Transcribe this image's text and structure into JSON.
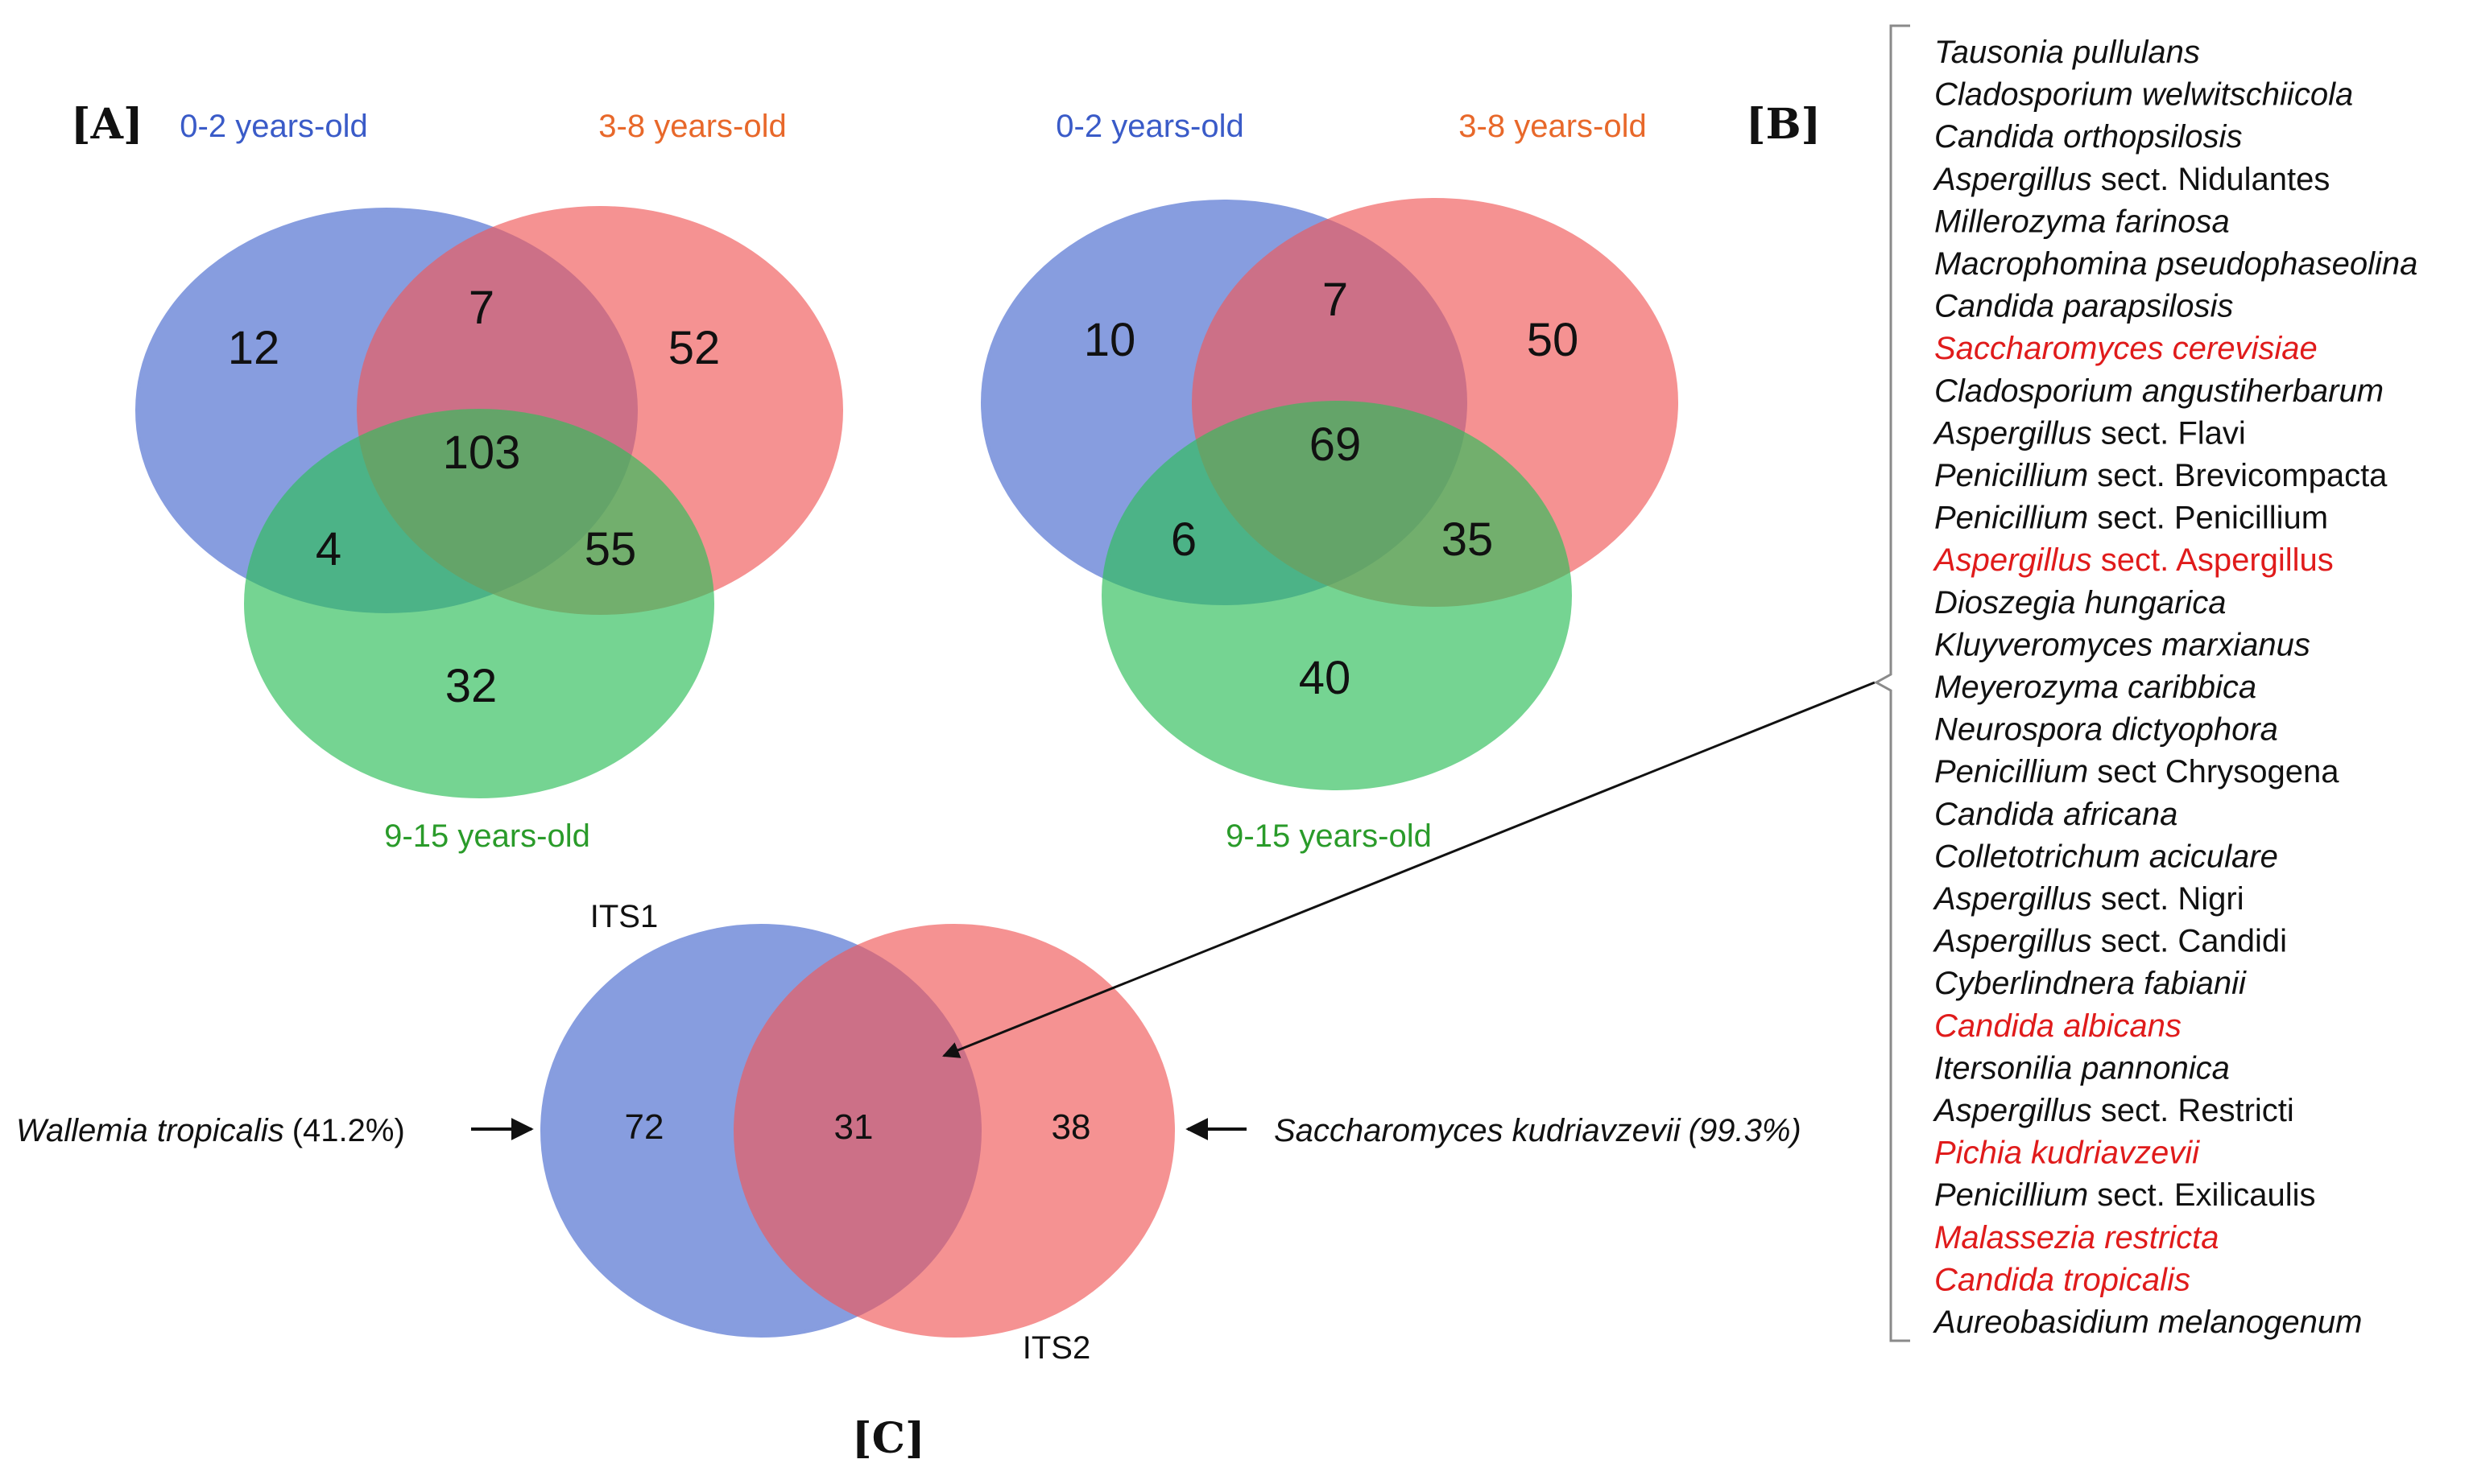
{
  "panel_labels": {
    "a": "[A]",
    "b": "[B]",
    "c": "[C]"
  },
  "colors": {
    "blue": "#4a6bd0",
    "red": "#f05a5a",
    "green": "#2fbf5a",
    "label_blue": "#3a5bc8",
    "label_orange": "#e8682a",
    "label_green": "#2a9b2a",
    "highlight_red": "#e01b1b",
    "text": "#111111"
  },
  "panel_a": {
    "sets": {
      "a": "0-2 years-old",
      "b": "3-8 years-old",
      "c": "9-15 years-old"
    },
    "regions": {
      "only_a": "12",
      "only_b": "52",
      "only_c": "32",
      "a_b": "7",
      "a_c": "4",
      "b_c": "55",
      "a_b_c": "103"
    }
  },
  "panel_b": {
    "sets": {
      "a": "0-2 years-old",
      "b": "3-8 years-old",
      "c": "9-15 years-old"
    },
    "regions": {
      "only_a": "10",
      "only_b": "50",
      "only_c": "40",
      "a_b": "7",
      "a_c": "6",
      "b_c": "35",
      "a_b_c": "69"
    }
  },
  "panel_c": {
    "sets": {
      "left": "ITS1",
      "right": "ITS2"
    },
    "regions": {
      "only_left": "72",
      "both": "31",
      "only_right": "38"
    },
    "left_annotation": {
      "species": "Wallemia tropicalis",
      "value": "(41.2%)"
    },
    "right_annotation": {
      "species": "Saccharomyces kudriavzevii",
      "value": "(99.3%)"
    }
  },
  "shared_species": [
    {
      "genus": "Tausonia pullulans",
      "rest": "",
      "highlight": false
    },
    {
      "genus": "Cladosporium welwitschiicola",
      "rest": "",
      "highlight": false
    },
    {
      "genus": "Candida orthopsilosis",
      "rest": "",
      "highlight": false
    },
    {
      "genus": "Aspergillus",
      "rest": " sect. Nidulantes",
      "highlight": false
    },
    {
      "genus": "Millerozyma farinosa",
      "rest": "",
      "highlight": false
    },
    {
      "genus": "Macrophomina pseudophaseolina",
      "rest": "",
      "highlight": false
    },
    {
      "genus": "Candida parapsilosis",
      "rest": "",
      "highlight": false
    },
    {
      "genus": "Saccharomyces cerevisiae",
      "rest": "",
      "highlight": true
    },
    {
      "genus": "Cladosporium angustiherbarum",
      "rest": "",
      "highlight": false
    },
    {
      "genus": "Aspergillus",
      "rest": " sect. Flavi",
      "highlight": false
    },
    {
      "genus": "Penicillium",
      "rest": " sect. Brevicompacta",
      "highlight": false
    },
    {
      "genus": "Penicillium",
      "rest": " sect. Penicillium",
      "highlight": false
    },
    {
      "genus": "Aspergillus",
      "rest": " sect. Aspergillus",
      "highlight": true
    },
    {
      "genus": "Dioszegia hungarica",
      "rest": "",
      "highlight": false
    },
    {
      "genus": "Kluyveromyces marxianus",
      "rest": "",
      "highlight": false
    },
    {
      "genus": "Meyerozyma caribbica",
      "rest": "",
      "highlight": false
    },
    {
      "genus": "Neurospora dictyophora",
      "rest": "",
      "highlight": false
    },
    {
      "genus": "Penicillium",
      "rest": " sect Chrysogena",
      "highlight": false
    },
    {
      "genus": "Candida africana",
      "rest": "",
      "highlight": false
    },
    {
      "genus": "Colletotrichum aciculare",
      "rest": "",
      "highlight": false
    },
    {
      "genus": "Aspergillus",
      "rest": " sect. Nigri",
      "highlight": false
    },
    {
      "genus": "Aspergillus",
      "rest": " sect. Candidi",
      "highlight": false
    },
    {
      "genus": "Cyberlindnera fabianii",
      "rest": "",
      "highlight": false
    },
    {
      "genus": "Candida albicans",
      "rest": "",
      "highlight": true
    },
    {
      "genus": "Itersonilia pannonica",
      "rest": "",
      "highlight": false
    },
    {
      "genus": "Aspergillus",
      "rest": " sect. Restricti",
      "highlight": false
    },
    {
      "genus": "Pichia kudriavzevii",
      "rest": "",
      "highlight": true
    },
    {
      "genus": "Penicillium",
      "rest": " sect. Exilicaulis",
      "highlight": false
    },
    {
      "genus": "Malassezia restricta",
      "rest": "",
      "highlight": true
    },
    {
      "genus": "Candida tropicalis",
      "rest": "",
      "highlight": true
    },
    {
      "genus": "Aureobasidium melanogenum",
      "rest": "",
      "highlight": false
    }
  ]
}
